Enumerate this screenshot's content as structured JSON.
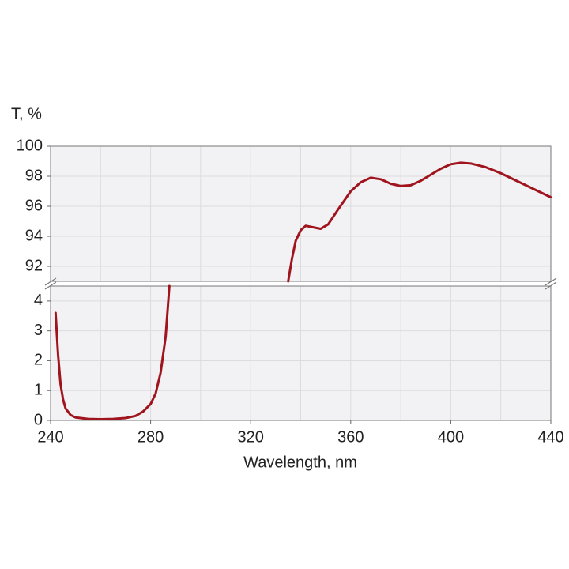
{
  "chart_data": {
    "type": "line",
    "ylabel": "T, %",
    "xlabel": "Wavelength, nm",
    "xlim": [
      240,
      440
    ],
    "xticks": [
      240,
      280,
      320,
      360,
      400,
      440
    ],
    "xminorticks": [
      260,
      300,
      340,
      380,
      420
    ],
    "grid": true,
    "panels": [
      {
        "ylim": [
          91,
          100
        ],
        "yticks": [
          92,
          94,
          96,
          98,
          100
        ]
      },
      {
        "ylim": [
          0,
          4.5
        ],
        "yticks": [
          0,
          1,
          2,
          3,
          4
        ]
      }
    ],
    "x": [
      242,
      243,
      244,
      245,
      246,
      248,
      250,
      255,
      260,
      265,
      270,
      274,
      277,
      280,
      282,
      284,
      286,
      287.5,
      335,
      336.5,
      338,
      340,
      342,
      345,
      348,
      351,
      355,
      360,
      364,
      368,
      372,
      376,
      380,
      384,
      388,
      392,
      396,
      400,
      404,
      408,
      414,
      420,
      430,
      440
    ],
    "series": [
      {
        "color": "#a0141e",
        "values": [
          3.6,
          2.2,
          1.2,
          0.7,
          0.4,
          0.18,
          0.1,
          0.05,
          0.04,
          0.05,
          0.08,
          0.15,
          0.3,
          0.55,
          0.9,
          1.6,
          2.8,
          4.5,
          91,
          92.5,
          93.7,
          94.4,
          94.7,
          94.6,
          94.5,
          94.8,
          95.8,
          97,
          97.6,
          97.9,
          97.8,
          97.5,
          97.35,
          97.4,
          97.7,
          98.1,
          98.5,
          98.8,
          98.9,
          98.85,
          98.6,
          98.2,
          97.4,
          96.6
        ]
      }
    ]
  }
}
